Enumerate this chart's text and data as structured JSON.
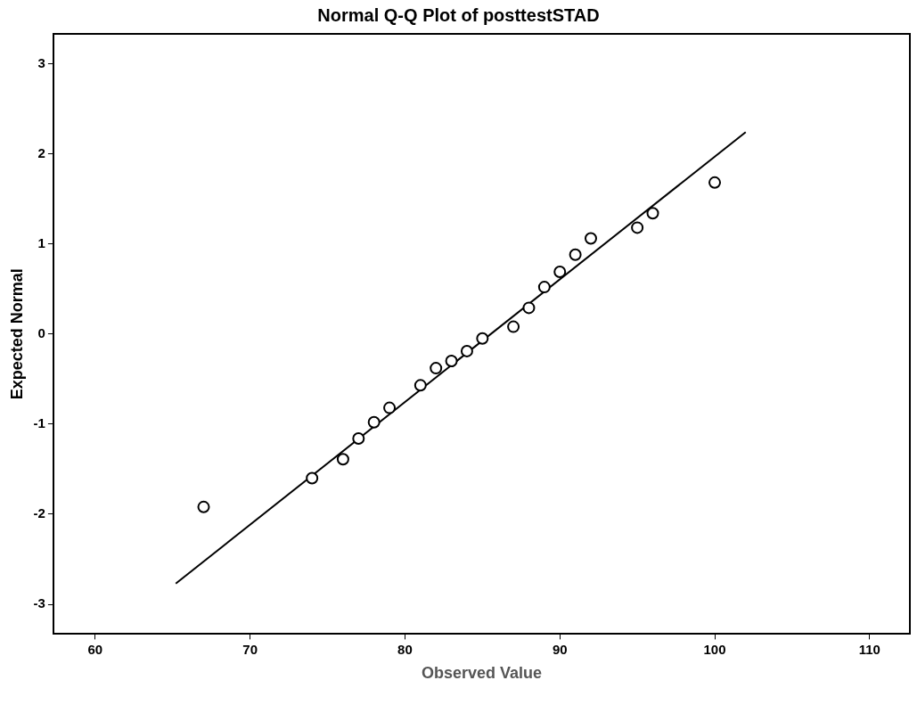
{
  "chart_data": {
    "type": "scatter",
    "title": "Normal Q-Q Plot of posttestSTAD",
    "xlabel": "Observed Value",
    "ylabel": "Expected Normal",
    "xlim": [
      57.3,
      112.6
    ],
    "xticks": [
      60,
      70,
      80,
      90,
      100,
      110
    ],
    "ylim": [
      -3.33,
      3.33
    ],
    "yticks": [
      -3,
      -2,
      -1,
      0,
      1,
      2,
      3
    ],
    "grid": false,
    "legend": false,
    "series": [
      {
        "marker": "circle",
        "color": "#000000",
        "x": [
          67,
          74,
          76,
          77,
          78,
          79,
          81,
          82,
          83,
          84,
          85,
          87,
          88,
          89,
          90,
          91,
          92,
          95,
          96,
          100
        ],
        "values": [
          -1.92,
          -1.6,
          -1.39,
          -1.16,
          -0.98,
          -0.82,
          -0.57,
          -0.38,
          -0.3,
          -0.19,
          -0.05,
          0.08,
          0.29,
          0.52,
          0.69,
          0.88,
          1.06,
          1.18,
          1.34,
          1.68
        ]
      },
      {
        "type": "line",
        "marker": "none",
        "color": "#000000",
        "x": [
          65.2,
          102
        ],
        "values": [
          -2.77,
          2.24
        ]
      }
    ]
  }
}
